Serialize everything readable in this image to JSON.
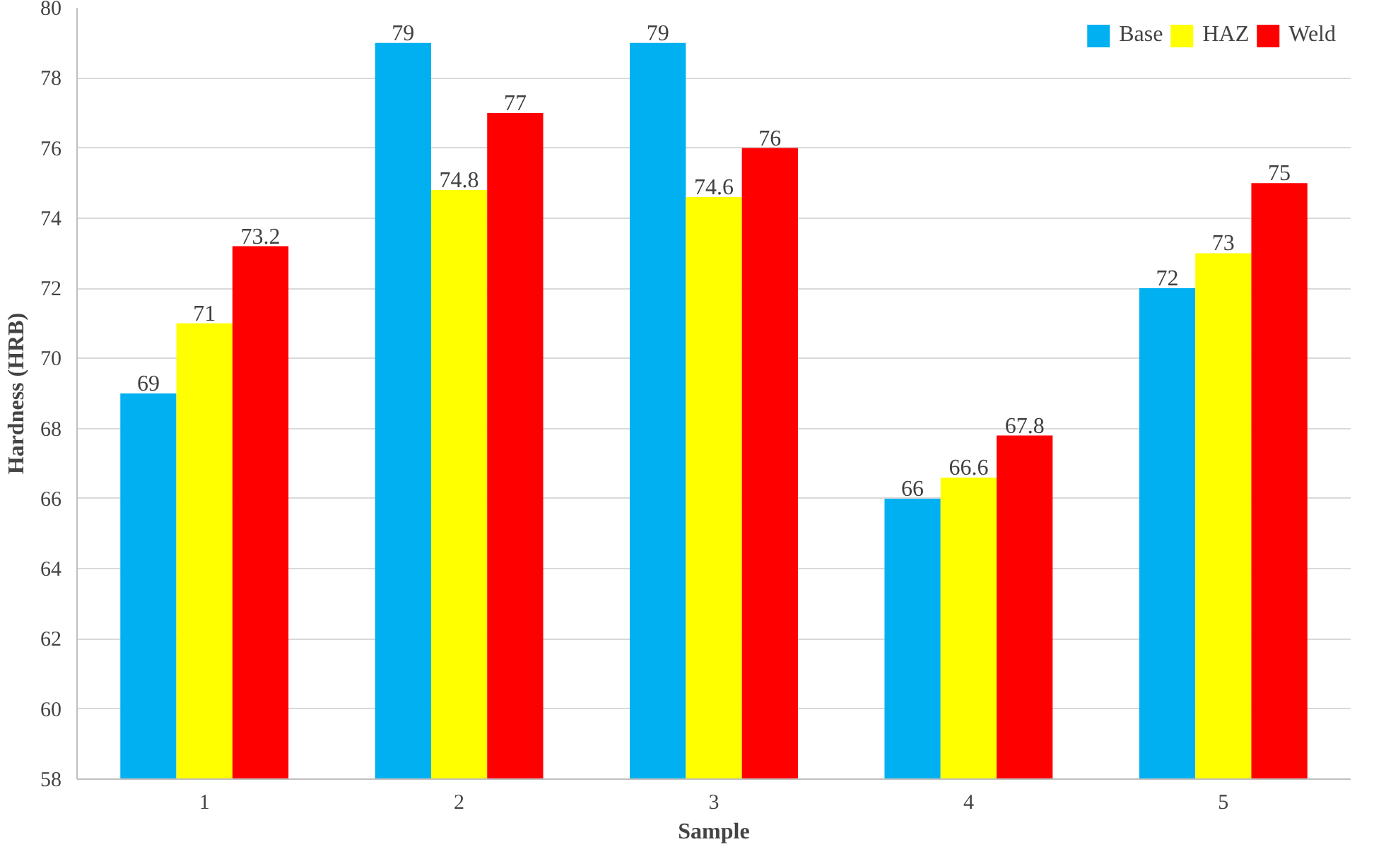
{
  "chart_data": {
    "type": "bar",
    "xlabel": "Sample",
    "ylabel": "Hardness (HRB)",
    "categories": [
      "1",
      "2",
      "3",
      "4",
      "5"
    ],
    "series": [
      {
        "name": "Base",
        "color": "#00b0f0",
        "values": [
          69,
          79,
          79,
          66,
          72
        ]
      },
      {
        "name": "HAZ",
        "color": "#ffff00",
        "values": [
          71,
          74.8,
          74.6,
          66.6,
          73
        ]
      },
      {
        "name": "Weld",
        "color": "#ff0000",
        "values": [
          73.2,
          77,
          76,
          67.8,
          75
        ]
      }
    ],
    "ylim": [
      58,
      80
    ],
    "yticks": [
      58,
      60,
      62,
      64,
      66,
      68,
      70,
      72,
      74,
      76,
      78,
      80
    ],
    "grid": "y",
    "legend": "top right",
    "data_labels": true
  }
}
